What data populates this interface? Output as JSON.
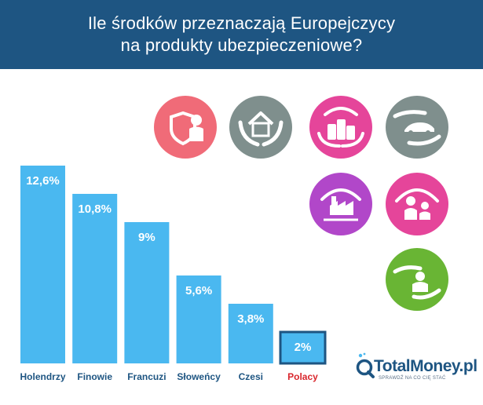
{
  "header": {
    "title_line1": "Ile  środków  przeznaczają Europejczycy",
    "title_line2": "na produkty  ubezpieczeniowe?"
  },
  "chart_data": {
    "type": "bar",
    "categories": [
      "Holendrzy",
      "Finowie",
      "Francuzi",
      "Słoweńcy",
      "Czesi",
      "Polacy"
    ],
    "values": [
      12.6,
      10.8,
      9,
      5.6,
      3.8,
      2
    ],
    "value_labels": [
      "12,6%",
      "10,8%",
      "9%",
      "5,6%",
      "3,8%",
      "2%"
    ],
    "highlight_category": "Polacy",
    "ylim": [
      0,
      12.6
    ],
    "grid": false,
    "colors": {
      "bar": "#4ab8f0",
      "highlight_border": "#1e5582",
      "highlight_label": "#d9262c",
      "category_label": "#1e5582",
      "value_label": "#ffffff"
    }
  },
  "icons": [
    {
      "name": "person-shield-icon",
      "color": "#f06b78"
    },
    {
      "name": "house-hands-icon",
      "color": "#7f8f8d"
    },
    {
      "name": "coins-hands-icon",
      "color": "#e5459a"
    },
    {
      "name": "car-hands-icon",
      "color": "#7f8f8d"
    },
    {
      "name": "factory-hands-icon",
      "color": "#b147c9"
    },
    {
      "name": "family-hands-icon",
      "color": "#e5459a"
    },
    {
      "name": "person-hands-icon",
      "color": "#69b534"
    }
  ],
  "logo": {
    "brand": "TotalMoney.pl",
    "tagline": "SPRAWDŹ NA CO CIĘ STAĆ"
  }
}
